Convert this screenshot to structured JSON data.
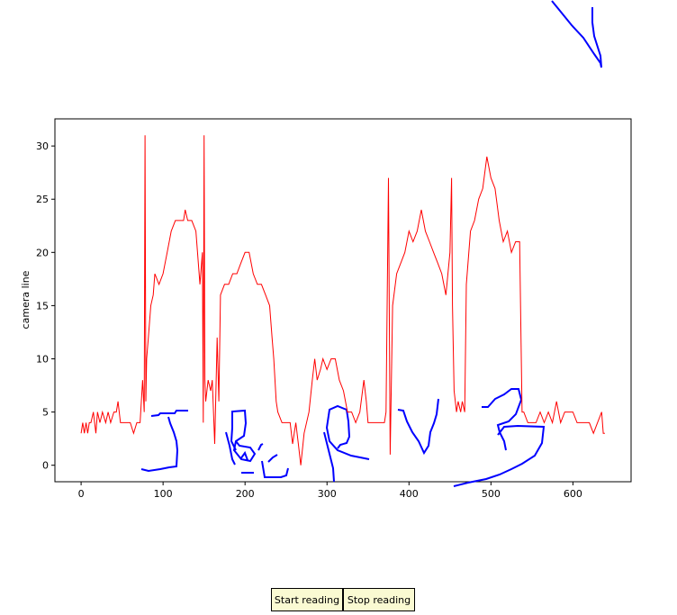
{
  "chart_data": {
    "type": "line",
    "y_label": "camera line",
    "x": [
      0,
      2,
      4,
      6,
      8,
      10,
      12,
      15,
      18,
      20,
      23,
      26,
      30,
      33,
      36,
      40,
      43,
      45,
      48,
      52,
      56,
      60,
      64,
      68,
      72,
      75,
      77,
      78,
      79,
      80,
      82,
      85,
      88,
      90,
      95,
      100,
      105,
      110,
      115,
      120,
      125,
      127,
      130,
      135,
      140,
      145,
      148,
      149,
      150,
      151,
      152,
      155,
      158,
      160,
      163,
      166,
      168,
      170,
      175,
      180,
      185,
      190,
      195,
      200,
      205,
      210,
      215,
      220,
      225,
      230,
      233,
      235,
      238,
      240,
      245,
      250,
      255,
      258,
      262,
      265,
      268,
      272,
      278,
      282,
      285,
      288,
      292,
      295,
      300,
      305,
      310,
      315,
      320,
      325,
      330,
      335,
      340,
      345,
      348,
      350,
      355,
      360,
      365,
      370,
      372,
      375,
      377,
      380,
      385,
      390,
      395,
      400,
      405,
      410,
      415,
      420,
      425,
      430,
      435,
      440,
      445,
      450,
      452,
      453,
      455,
      458,
      460,
      463,
      465,
      468,
      470,
      475,
      480,
      485,
      490,
      495,
      500,
      505,
      510,
      515,
      520,
      525,
      530,
      535,
      538,
      540,
      545,
      550,
      555,
      560,
      565,
      570,
      575,
      580,
      585,
      590,
      595,
      600,
      605,
      610,
      615,
      620,
      625,
      630,
      635,
      637,
      639
    ],
    "series": [
      {
        "name": "camera line",
        "color": "#ff0000",
        "values": [
          3,
          4,
          3,
          4,
          3,
          4,
          4,
          5,
          3,
          5,
          4,
          5,
          4,
          5,
          4,
          5,
          5,
          6,
          4,
          4,
          4,
          4,
          3,
          4,
          4,
          8,
          5,
          31,
          6,
          10,
          12,
          15,
          16,
          18,
          17,
          18,
          20,
          22,
          23,
          23,
          23,
          24,
          23,
          23,
          22,
          17,
          20,
          4,
          31,
          8,
          6,
          8,
          7,
          8,
          2,
          12,
          6,
          16,
          17,
          17,
          18,
          18,
          19,
          20,
          20,
          18,
          17,
          17,
          16,
          15,
          12,
          10,
          6,
          5,
          4,
          4,
          4,
          2,
          4,
          2,
          0,
          3,
          5,
          8,
          10,
          8,
          9,
          10,
          9,
          10,
          10,
          8,
          7,
          5,
          5,
          4,
          5,
          8,
          6,
          4,
          4,
          4,
          4,
          4,
          5,
          27,
          1,
          15,
          18,
          19,
          20,
          22,
          21,
          22,
          24,
          22,
          21,
          20,
          19,
          18,
          16,
          20,
          27,
          15,
          7,
          5,
          6,
          5,
          6,
          5,
          17,
          22,
          23,
          25,
          26,
          29,
          27,
          26,
          23,
          21,
          22,
          20,
          21,
          21,
          5,
          5,
          4,
          4,
          4,
          5,
          4,
          5,
          4,
          6,
          4,
          5,
          5,
          5,
          4,
          4,
          4,
          4,
          3,
          4,
          5,
          3,
          3
        ]
      }
    ],
    "xlim": [
      -31.95,
      670.95
    ],
    "ylim": [
      -1.55,
      32.55
    ],
    "xticks": [
      0,
      100,
      200,
      300,
      400,
      500,
      600
    ],
    "yticks": [
      0,
      5,
      10,
      15,
      20,
      25,
      30
    ]
  },
  "buttons": [
    "Start reading",
    "Stop reading"
  ]
}
